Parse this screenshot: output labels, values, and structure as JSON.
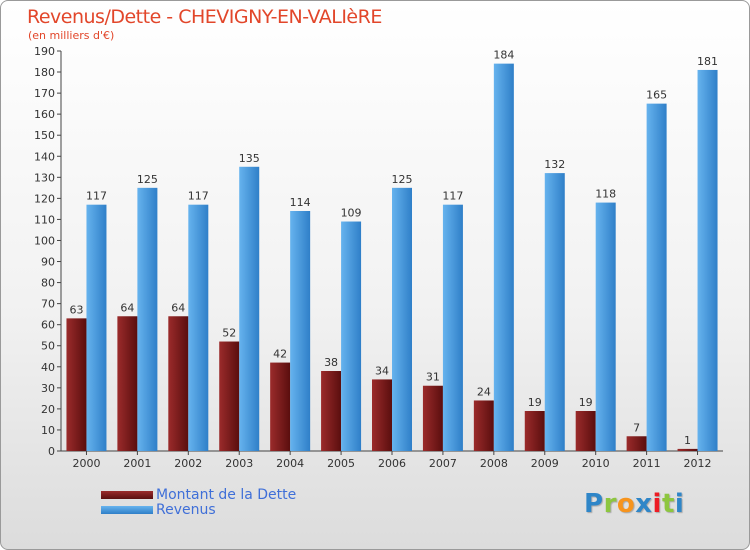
{
  "chart_data": {
    "type": "bar",
    "title": "Revenus/Dette - CHEVIGNY-EN-VALIèRE",
    "subtitle": "(en milliers d'€)",
    "categories": [
      "2000",
      "2001",
      "2002",
      "2003",
      "2004",
      "2005",
      "2006",
      "2007",
      "2008",
      "2009",
      "2010",
      "2011",
      "2012"
    ],
    "series": [
      {
        "name": "Montant de la Dette",
        "color": "#7a1b1b",
        "values": [
          63,
          64,
          64,
          52,
          42,
          38,
          34,
          31,
          24,
          19,
          19,
          7,
          1
        ]
      },
      {
        "name": "Revenus",
        "color": "#4d9de0",
        "values": [
          117,
          125,
          117,
          135,
          114,
          109,
          125,
          117,
          184,
          132,
          118,
          165,
          181
        ]
      }
    ],
    "ylim": [
      0,
      190
    ],
    "yticks": [
      0,
      10,
      20,
      30,
      40,
      50,
      60,
      70,
      80,
      90,
      100,
      110,
      120,
      130,
      140,
      150,
      160,
      170,
      180,
      190
    ],
    "xlabel": "",
    "ylabel": "",
    "grid": false,
    "legend_position": "bottom-left"
  },
  "brand": {
    "letters": [
      {
        "ch": "P",
        "color": "#2f86c8"
      },
      {
        "ch": "r",
        "color": "#8dc63f"
      },
      {
        "ch": "o",
        "color": "#f7941d"
      },
      {
        "ch": "x",
        "color": "#2f86c8"
      },
      {
        "ch": "i",
        "color": "#ed1c24"
      },
      {
        "ch": "t",
        "color": "#8dc63f"
      },
      {
        "ch": "i",
        "color": "#2f86c8"
      }
    ]
  }
}
